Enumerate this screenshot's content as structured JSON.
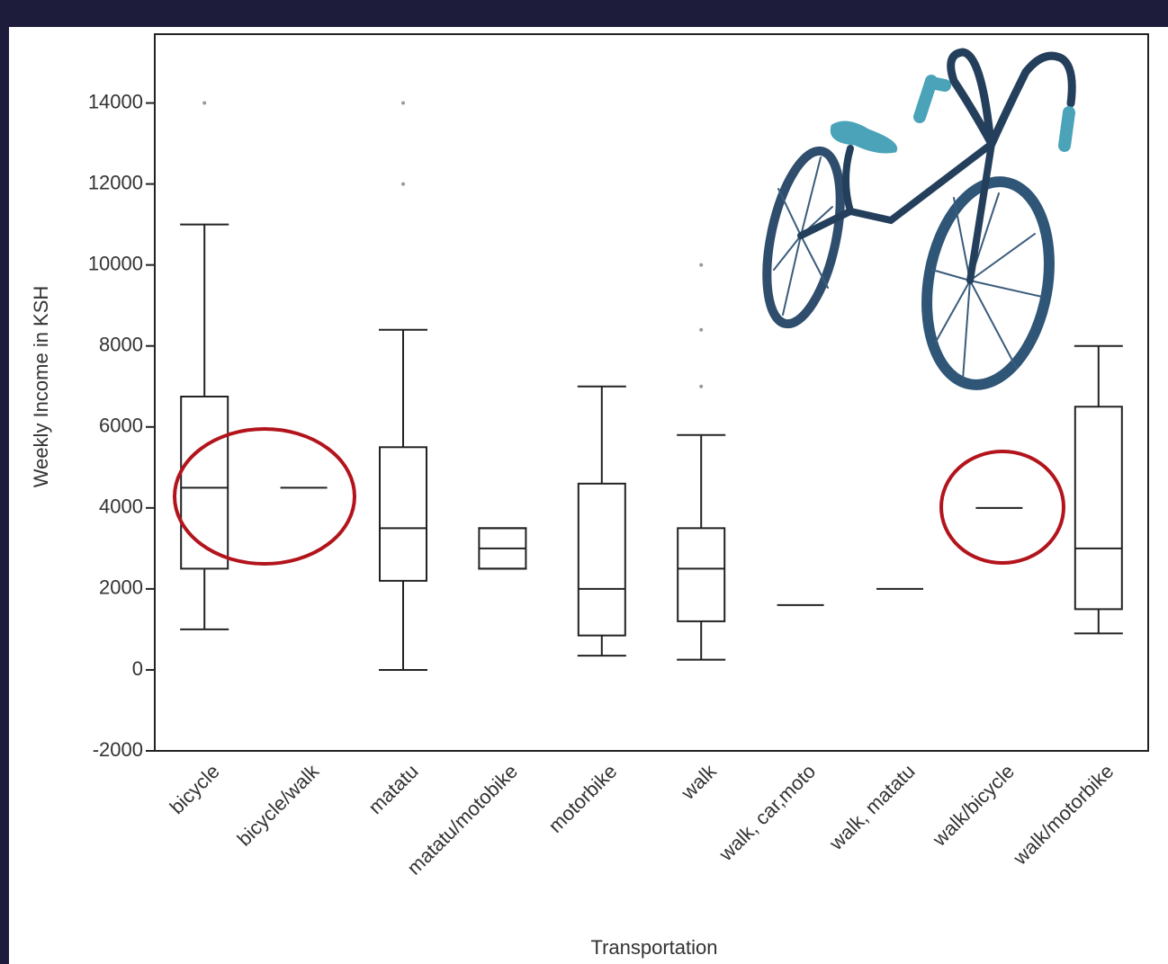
{
  "chart_data": {
    "type": "box",
    "x_label": "Transportation",
    "y_label": "Weekly Income in KSH",
    "categories": [
      "bicycle",
      "bicycle/walk",
      "matatu",
      "matatu/motobike",
      "motorbike",
      "walk",
      "walk, car,moto",
      "walk, matatu",
      "walk/bicycle",
      "walk/motorbike"
    ],
    "stats": [
      {
        "whislo": 1000,
        "q1": 2500,
        "med": 4500,
        "q3": 6750,
        "whishi": 11000,
        "fliers": [
          14000
        ]
      },
      {
        "med": 4500
      },
      {
        "whislo": 0,
        "q1": 2200,
        "med": 3500,
        "q3": 5500,
        "whishi": 8400,
        "fliers": [
          12000,
          14000
        ]
      },
      {
        "whislo": 2500,
        "q1": 2500,
        "med": 3000,
        "q3": 3500,
        "whishi": 3500
      },
      {
        "whislo": 350,
        "q1": 850,
        "med": 2000,
        "q3": 4600,
        "whishi": 7000
      },
      {
        "whislo": 250,
        "q1": 1200,
        "med": 2500,
        "q3": 3500,
        "whishi": 5800,
        "fliers": [
          7000,
          8400,
          10000
        ]
      },
      {
        "med": 1600
      },
      {
        "med": 2000
      },
      {
        "med": 4000
      },
      {
        "whislo": 900,
        "q1": 1500,
        "med": 3000,
        "q3": 6500,
        "whishi": 8000
      }
    ],
    "ylim": [
      -2000,
      15700
    ],
    "yticks": [
      -2000,
      0,
      2000,
      4000,
      6000,
      8000,
      10000,
      12000,
      14000
    ],
    "color": "#222222",
    "flier_color": "#999999"
  }
}
